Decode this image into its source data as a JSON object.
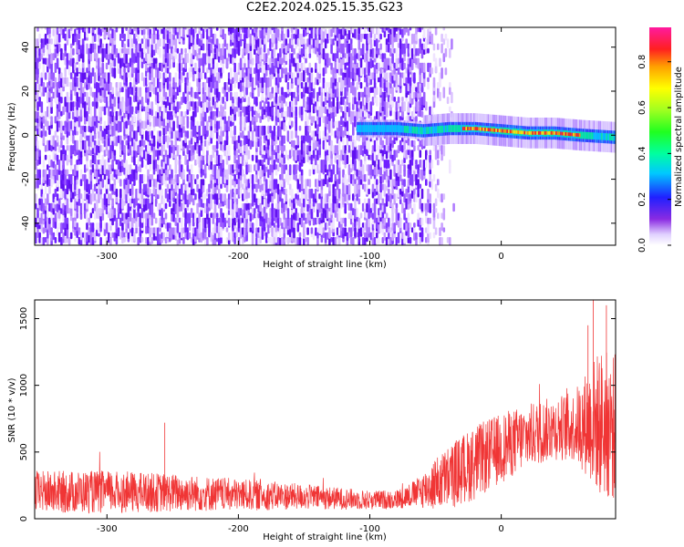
{
  "title": "C2E2.2024.025.15.35.G23",
  "chart_data": [
    {
      "type": "heatmap",
      "xlabel": "Height of straight line (km)",
      "ylabel": "Frequency (Hz)",
      "xlim": [
        -355,
        87
      ],
      "ylim": [
        -50,
        49
      ],
      "xticks": [
        -300,
        -200,
        -100,
        0
      ],
      "yticks": [
        -40,
        -20,
        0,
        20,
        40
      ],
      "colorbar": {
        "label": "Normalized spectral amplitude",
        "range": [
          0,
          0.95
        ],
        "ticks": [
          "0.0",
          "0.2",
          "0.4",
          "0.6",
          "0.8"
        ],
        "tick_values": [
          0,
          0.2,
          0.4,
          0.6,
          0.8
        ],
        "colormap": "gist_ncar-like (white → purple → blue → cyan → green → yellow → red → pink)"
      },
      "noise_region_x": [
        -355,
        -60
      ],
      "signal_band": {
        "x_range": [
          -110,
          87
        ],
        "center_freq": [
          {
            "x": -110,
            "f": 3
          },
          {
            "x": -80,
            "f": 3
          },
          {
            "x": -60,
            "f": 2
          },
          {
            "x": -40,
            "f": 3
          },
          {
            "x": -20,
            "f": 3
          },
          {
            "x": 0,
            "f": 2
          },
          {
            "x": 20,
            "f": 1
          },
          {
            "x": 40,
            "f": 1
          },
          {
            "x": 60,
            "f": 0
          },
          {
            "x": 87,
            "f": -1
          }
        ],
        "peak_amplitude_region_x": [
          -30,
          60
        ]
      }
    },
    {
      "type": "line",
      "xlabel": "Height of straight line (km)",
      "ylabel": "SNR (10 * v/v)",
      "xlim": [
        -355,
        87
      ],
      "ylim": [
        0,
        1640
      ],
      "xticks": [
        -300,
        -200,
        -100,
        0
      ],
      "yticks": [
        0,
        500,
        1000,
        1500
      ],
      "color": "#f03535",
      "envelope": [
        {
          "x": -355,
          "mean": 200,
          "spread": 200
        },
        {
          "x": -300,
          "mean": 200,
          "spread": 200
        },
        {
          "x": -250,
          "mean": 195,
          "spread": 180
        },
        {
          "x": -200,
          "mean": 180,
          "spread": 150
        },
        {
          "x": -150,
          "mean": 165,
          "spread": 120
        },
        {
          "x": -100,
          "mean": 140,
          "spread": 90
        },
        {
          "x": -80,
          "mean": 145,
          "spread": 90
        },
        {
          "x": -65,
          "mean": 190,
          "spread": 130
        },
        {
          "x": -50,
          "mean": 260,
          "spread": 250
        },
        {
          "x": -35,
          "mean": 340,
          "spread": 320
        },
        {
          "x": -20,
          "mean": 420,
          "spread": 350
        },
        {
          "x": 0,
          "mean": 530,
          "spread": 330
        },
        {
          "x": 20,
          "mean": 620,
          "spread": 300
        },
        {
          "x": 40,
          "mean": 680,
          "spread": 300
        },
        {
          "x": 55,
          "mean": 690,
          "spread": 330
        },
        {
          "x": 65,
          "mean": 720,
          "spread": 500
        },
        {
          "x": 75,
          "mean": 720,
          "spread": 700
        },
        {
          "x": 87,
          "mean": 680,
          "spread": 700
        }
      ],
      "spikes": [
        {
          "x": -256,
          "y": 720
        },
        {
          "x": 70,
          "y": 1640
        },
        {
          "x": 80,
          "y": 1600
        },
        {
          "x": 66,
          "y": 1450
        }
      ]
    }
  ]
}
